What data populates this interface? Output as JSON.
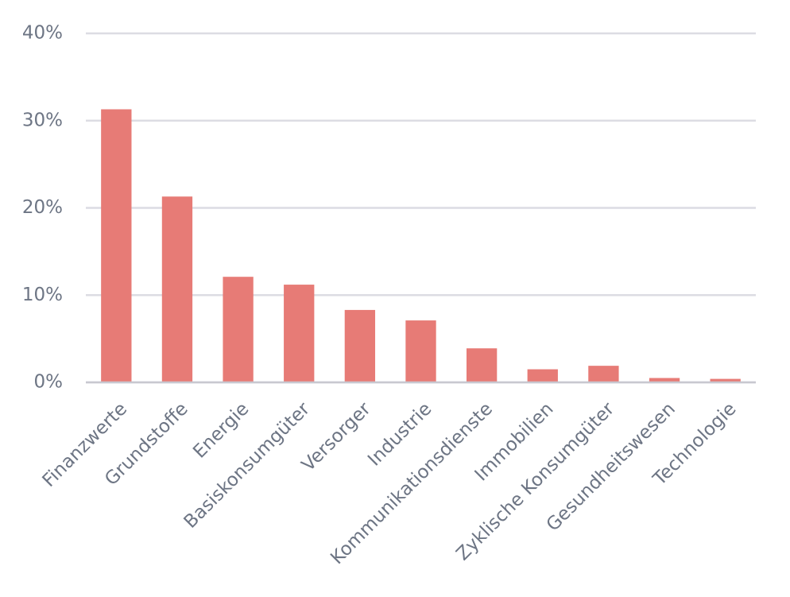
{
  "chart_data": {
    "type": "bar",
    "categories": [
      "Finanzwerte",
      "Grundstoffe",
      "Energie",
      "Basiskonsumgüter",
      "Versorger",
      "Industrie",
      "Kommunikationsdienste",
      "Immobilien",
      "Zyklische Konsumgüter",
      "Gesundheitswesen",
      "Technologie"
    ],
    "values": [
      31.3,
      21.3,
      12.1,
      11.2,
      8.3,
      7.1,
      3.9,
      1.5,
      1.9,
      0.5,
      0.4
    ],
    "color": "#e77b76",
    "ylim": [
      0,
      40
    ],
    "yticks": [
      {
        "value": 0,
        "label": "0%"
      },
      {
        "value": 10,
        "label": "10%"
      },
      {
        "value": 20,
        "label": "20%"
      },
      {
        "value": 30,
        "label": "30%"
      },
      {
        "value": 40,
        "label": "40%"
      }
    ],
    "grid": true
  }
}
